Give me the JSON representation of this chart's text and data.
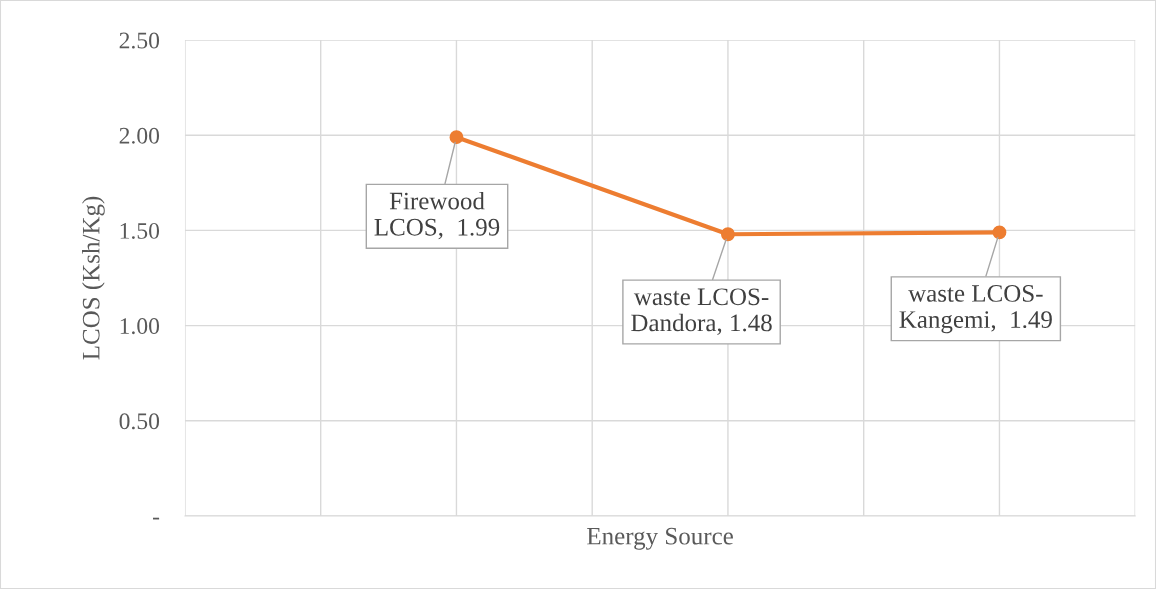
{
  "chart_data": {
    "type": "line",
    "xlabel": "Energy Source",
    "ylabel": "LCOS (Ksh/Kg)",
    "categories": [
      null,
      null,
      null
    ],
    "series": [
      {
        "color": "#ed7d31",
        "values": [
          1.99,
          1.48,
          1.49
        ],
        "value_labels": [
          "Firewood\nLCOS,  1.99",
          "waste LCOS-\nDandora, 1.48",
          "waste LCOS-\nKangemi,  1.49"
        ]
      }
    ],
    "ylim": [
      0,
      2.5
    ],
    "yticks": [
      {
        "value": 0,
        "label": "-"
      },
      {
        "value": 0.5,
        "label": "0.50"
      },
      {
        "value": 1,
        "label": "1.00"
      },
      {
        "value": 1.5,
        "label": "1.50"
      },
      {
        "value": 2,
        "label": "2.00"
      },
      {
        "value": 2.5,
        "label": "2.50"
      }
    ],
    "grid": true,
    "marker": "circle",
    "line_style": "solid",
    "tick_labels": "y"
  }
}
